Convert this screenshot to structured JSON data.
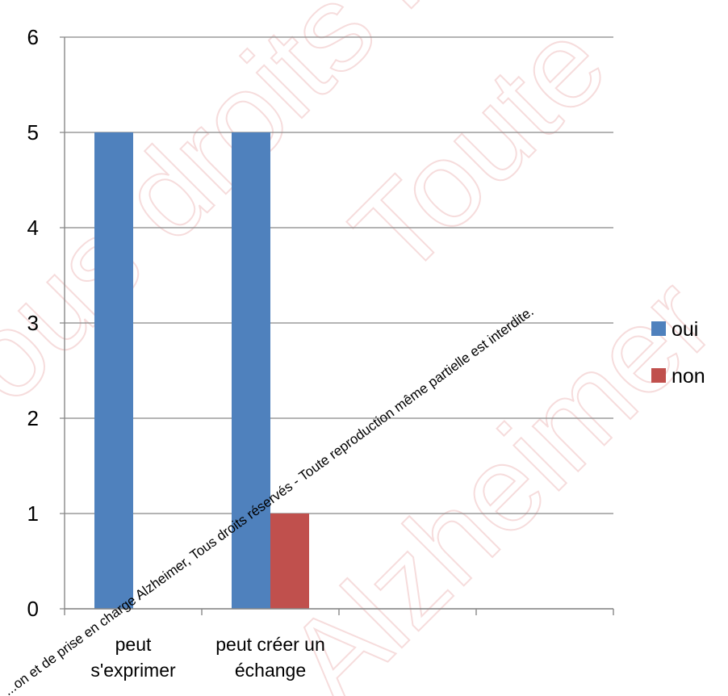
{
  "chart_data": {
    "type": "bar",
    "categories": [
      [
        "peut",
        "s'exprimer"
      ],
      [
        "peut créer un",
        "échange"
      ],
      [
        ""
      ],
      [
        ""
      ]
    ],
    "series": [
      {
        "name": "oui",
        "values": [
          5,
          5,
          null,
          null
        ],
        "color": "#4f81bd"
      },
      {
        "name": "non",
        "values": [
          null,
          1,
          null,
          null
        ],
        "color": "#c0504d"
      }
    ],
    "ylim": [
      0,
      6
    ],
    "yticks": [
      "0",
      "1",
      "2",
      "3",
      "4",
      "5",
      "6"
    ],
    "grid": true,
    "legend_position": "right",
    "title": "",
    "xlabel": "",
    "ylabel": ""
  },
  "watermark": {
    "diagonal_text": "...on et de prise en charge Alzheimer, Tous droits réservés - Toute reproduction même partielle est interdite.",
    "background_words": [
      "Tous droits réservés",
      "Alzheimer",
      "Toute"
    ]
  }
}
